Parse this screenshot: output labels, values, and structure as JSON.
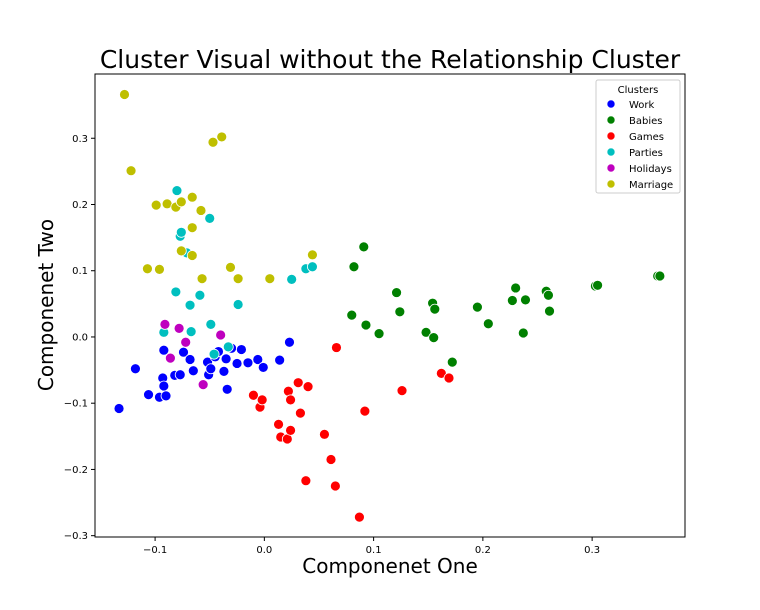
{
  "chart_data": {
    "type": "scatter",
    "title": "Cluster Visual without the Relationship Cluster",
    "xlabel": "Componenet One",
    "ylabel": "Componenet Two",
    "xlim": [
      -0.155,
      0.385
    ],
    "ylim": [
      -0.302,
      0.397
    ],
    "xticks": [
      -0.1,
      0.0,
      0.1,
      0.2,
      0.3
    ],
    "xtick_labels": [
      "−0.1",
      "0.0",
      "0.1",
      "0.2",
      "0.3"
    ],
    "yticks": [
      -0.3,
      -0.2,
      -0.1,
      0.0,
      0.1,
      0.2,
      0.3
    ],
    "ytick_labels": [
      "−0.3",
      "−0.2",
      "−0.1",
      "0.0",
      "0.1",
      "0.2",
      "0.3"
    ],
    "grid": false,
    "legend": {
      "title": "Clusters",
      "placement": "top-right"
    },
    "series": [
      {
        "name": "Work",
        "color": "#0000ff",
        "points": [
          [
            -0.133,
            -0.108
          ],
          [
            -0.118,
            -0.048
          ],
          [
            -0.106,
            -0.087
          ],
          [
            -0.096,
            -0.091
          ],
          [
            -0.092,
            -0.02
          ],
          [
            -0.093,
            -0.062
          ],
          [
            -0.092,
            -0.074
          ],
          [
            -0.09,
            -0.089
          ],
          [
            -0.082,
            -0.058
          ],
          [
            -0.077,
            -0.057
          ],
          [
            -0.074,
            -0.023
          ],
          [
            -0.068,
            -0.034
          ],
          [
            -0.065,
            -0.051
          ],
          [
            -0.056,
            -0.072
          ],
          [
            -0.052,
            -0.038
          ],
          [
            -0.051,
            -0.057
          ],
          [
            -0.049,
            -0.048
          ],
          [
            -0.045,
            -0.03
          ],
          [
            -0.042,
            -0.022
          ],
          [
            -0.037,
            -0.052
          ],
          [
            -0.035,
            -0.033
          ],
          [
            -0.034,
            -0.079
          ],
          [
            -0.03,
            -0.017
          ],
          [
            -0.025,
            -0.04
          ],
          [
            -0.021,
            -0.019
          ],
          [
            -0.015,
            -0.039
          ],
          [
            -0.006,
            -0.034
          ],
          [
            -0.001,
            -0.046
          ],
          [
            0.014,
            -0.035
          ],
          [
            0.023,
            -0.008
          ]
        ]
      },
      {
        "name": "Babies",
        "color": "#008000",
        "points": [
          [
            0.082,
            0.106
          ],
          [
            0.091,
            0.136
          ],
          [
            0.08,
            0.033
          ],
          [
            0.093,
            0.018
          ],
          [
            0.105,
            0.005
          ],
          [
            0.121,
            0.067
          ],
          [
            0.124,
            0.038
          ],
          [
            0.148,
            0.007
          ],
          [
            0.154,
            0.051
          ],
          [
            0.156,
            0.042
          ],
          [
            0.155,
            -0.001
          ],
          [
            0.172,
            -0.038
          ],
          [
            0.195,
            0.045
          ],
          [
            0.205,
            0.02
          ],
          [
            0.227,
            0.055
          ],
          [
            0.23,
            0.074
          ],
          [
            0.237,
            0.006
          ],
          [
            0.239,
            0.056
          ],
          [
            0.258,
            0.069
          ],
          [
            0.26,
            0.063
          ],
          [
            0.261,
            0.039
          ],
          [
            0.303,
            0.077
          ],
          [
            0.305,
            0.078
          ],
          [
            0.36,
            0.092
          ],
          [
            0.362,
            0.092
          ]
        ]
      },
      {
        "name": "Games",
        "color": "#ff0000",
        "points": [
          [
            -0.01,
            -0.088
          ],
          [
            -0.004,
            -0.106
          ],
          [
            -0.002,
            -0.095
          ],
          [
            0.013,
            -0.132
          ],
          [
            0.015,
            -0.151
          ],
          [
            0.021,
            -0.154
          ],
          [
            0.022,
            -0.082
          ],
          [
            0.024,
            -0.095
          ],
          [
            0.024,
            -0.141
          ],
          [
            0.031,
            -0.069
          ],
          [
            0.033,
            -0.115
          ],
          [
            0.038,
            -0.217
          ],
          [
            0.04,
            -0.075
          ],
          [
            0.055,
            -0.147
          ],
          [
            0.061,
            -0.185
          ],
          [
            0.065,
            -0.225
          ],
          [
            0.066,
            -0.016
          ],
          [
            0.087,
            -0.272
          ],
          [
            0.092,
            -0.112
          ],
          [
            0.126,
            -0.081
          ],
          [
            0.162,
            -0.055
          ],
          [
            0.169,
            -0.062
          ]
        ]
      },
      {
        "name": "Parties",
        "color": "#00bfbf",
        "points": [
          [
            -0.092,
            0.007
          ],
          [
            -0.081,
            0.068
          ],
          [
            -0.08,
            0.221
          ],
          [
            -0.077,
            0.152
          ],
          [
            -0.076,
            0.158
          ],
          [
            -0.071,
            0.127
          ],
          [
            -0.068,
            0.048
          ],
          [
            -0.067,
            0.008
          ],
          [
            -0.059,
            0.063
          ],
          [
            -0.05,
            0.179
          ],
          [
            -0.049,
            0.019
          ],
          [
            -0.046,
            -0.026
          ],
          [
            -0.033,
            -0.015
          ],
          [
            -0.024,
            0.049
          ],
          [
            0.025,
            0.087
          ],
          [
            0.038,
            0.103
          ],
          [
            0.044,
            0.106
          ]
        ]
      },
      {
        "name": "Holidays",
        "color": "#bf00bf",
        "points": [
          [
            -0.091,
            0.019
          ],
          [
            -0.086,
            -0.032
          ],
          [
            -0.078,
            0.013
          ],
          [
            -0.072,
            -0.008
          ],
          [
            -0.056,
            -0.072
          ],
          [
            -0.04,
            0.003
          ]
        ]
      },
      {
        "name": "Marriage",
        "color": "#bfbf00",
        "points": [
          [
            -0.128,
            0.366
          ],
          [
            -0.122,
            0.251
          ],
          [
            -0.107,
            0.103
          ],
          [
            -0.099,
            0.199
          ],
          [
            -0.096,
            0.102
          ],
          [
            -0.089,
            0.201
          ],
          [
            -0.081,
            0.196
          ],
          [
            -0.076,
            0.204
          ],
          [
            -0.076,
            0.13
          ],
          [
            -0.066,
            0.211
          ],
          [
            -0.066,
            0.165
          ],
          [
            -0.066,
            0.123
          ],
          [
            -0.058,
            0.191
          ],
          [
            -0.057,
            0.088
          ],
          [
            -0.047,
            0.294
          ],
          [
            -0.039,
            0.302
          ],
          [
            -0.031,
            0.105
          ],
          [
            -0.024,
            0.088
          ],
          [
            0.005,
            0.088
          ],
          [
            0.044,
            0.124
          ]
        ]
      }
    ]
  }
}
